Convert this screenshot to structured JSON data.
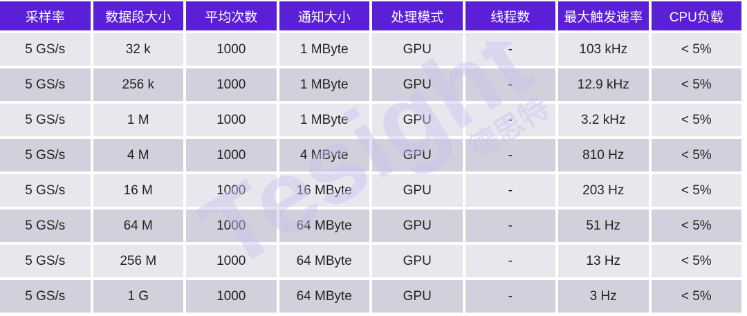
{
  "table": {
    "headers": [
      "采样率",
      "数据段大小",
      "平均次数",
      "通知大小",
      "处理模式",
      "线程数",
      "最大触发速率",
      "CPU负载"
    ],
    "rows": [
      [
        "5 GS/s",
        "32 k",
        "1000",
        "1 MByte",
        "GPU",
        "-",
        "103 kHz",
        "< 5%"
      ],
      [
        "5 GS/s",
        "256 k",
        "1000",
        "1 MByte",
        "GPU",
        "-",
        "12.9 kHz",
        "< 5%"
      ],
      [
        "5 GS/s",
        "1 M",
        "1000",
        "1 MByte",
        "GPU",
        "-",
        "3.2 kHz",
        "< 5%"
      ],
      [
        "5 GS/s",
        "4 M",
        "1000",
        "4 MByte",
        "GPU",
        "-",
        "810 Hz",
        "< 5%"
      ],
      [
        "5 GS/s",
        "16 M",
        "1000",
        "16 MByte",
        "GPU",
        "-",
        "203 Hz",
        "< 5%"
      ],
      [
        "5 GS/s",
        "64 M",
        "1000",
        "64 MByte",
        "GPU",
        "-",
        "51 Hz",
        "< 5%"
      ],
      [
        "5 GS/s",
        "256 M",
        "1000",
        "64 MByte",
        "GPU",
        "-",
        "13 Hz",
        "< 5%"
      ],
      [
        "5 GS/s",
        "1 G",
        "1000",
        "64 MByte",
        "GPU",
        "-",
        "3 Hz",
        "< 5%"
      ]
    ]
  },
  "watermark": {
    "text": "Tesight",
    "subtext": "德思特",
    "color": "#c9c2ee"
  },
  "colors": {
    "header_bg": "#5a1fd6",
    "row_light": "#e8e7ee",
    "row_dark": "#d2d0dc"
  }
}
